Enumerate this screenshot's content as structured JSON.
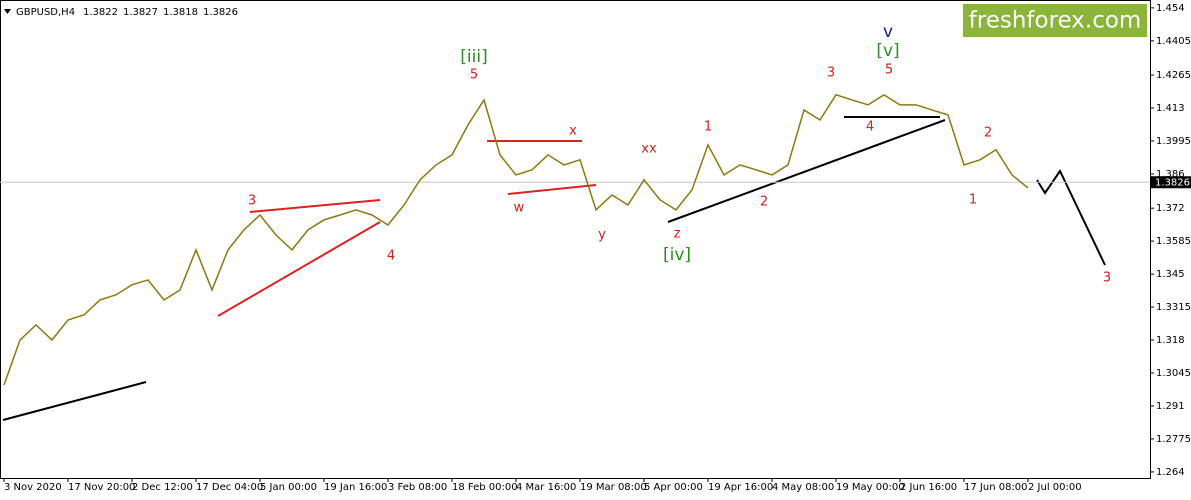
{
  "chart_data": {
    "type": "line",
    "symbol": "GBPUSD,H4",
    "ohlc": [
      1.3822,
      1.3827,
      1.3818,
      1.3826
    ],
    "last_price": 1.3826,
    "watermark": "freshforex.com",
    "categories": [
      "3 Nov 2020",
      null,
      null,
      null,
      "17 Nov 20:00",
      null,
      null,
      null,
      "2 Dec 12:00",
      null,
      null,
      null,
      "17 Dec 04:00",
      null,
      null,
      null,
      "5 Jan 00:00",
      null,
      null,
      null,
      "19 Jan 16:00",
      null,
      null,
      null,
      "3 Feb 08:00",
      null,
      null,
      null,
      "18 Feb 00:00",
      null,
      null,
      null,
      "4 Mar 16:00",
      null,
      null,
      null,
      "19 Mar 08:00",
      null,
      null,
      null,
      "5 Apr 00:00",
      null,
      null,
      null,
      "19 Apr 16:00",
      null,
      null,
      null,
      "4 May 08:00",
      null,
      null,
      null,
      "19 May 00:00",
      null,
      null,
      null,
      "2 Jun 16:00",
      null,
      null,
      null,
      "17 Jun 08:00",
      null,
      null,
      null,
      "2 Jul 00:00"
    ],
    "series": [
      {
        "name": "GBPUSD",
        "color": "#8a7a10",
        "values": [
          1.2996,
          1.318,
          1.3242,
          1.318,
          1.3262,
          1.3283,
          1.3344,
          1.3365,
          1.3406,
          1.3426,
          1.3344,
          1.3385,
          1.3549,
          1.3385,
          1.3549,
          1.3631,
          1.3692,
          1.361,
          1.3549,
          1.3631,
          1.3672,
          1.3692,
          1.3713,
          1.3692,
          1.3651,
          1.3733,
          1.3836,
          1.3897,
          1.3938,
          1.4061,
          1.4163,
          1.3938,
          1.3856,
          1.3877,
          1.3938,
          1.3897,
          1.3918,
          1.3713,
          1.3774,
          1.3733,
          1.3836,
          1.3754,
          1.3713,
          1.3795,
          1.3979,
          1.3856,
          1.3897,
          1.3877,
          1.3856,
          1.3897,
          1.4122,
          1.4081,
          1.4184,
          1.4163,
          1.4143,
          1.4184,
          1.4143,
          1.4143,
          1.4122,
          1.4102,
          1.3897,
          1.3918,
          1.3959,
          1.3856,
          1.3803
        ]
      }
    ],
    "ylim": [
      1.2615,
      1.456
    ],
    "yticks": [
      1.454,
      1.4405,
      1.4265,
      1.413,
      1.3995,
      1.386,
      1.372,
      1.3585,
      1.345,
      1.3315,
      1.318,
      1.3045,
      1.291,
      1.2775,
      1.264
    ],
    "annotations": [
      {
        "text": "[iii]",
        "color": "#2e8b22"
      },
      {
        "text": "5",
        "color": "#d02020"
      },
      {
        "text": "3",
        "color": "#d02020"
      },
      {
        "text": "4",
        "color": "#d02020"
      },
      {
        "text": "x",
        "color": "#d02020"
      },
      {
        "text": "w",
        "color": "#d02020"
      },
      {
        "text": "xx",
        "color": "#d02020"
      },
      {
        "text": "y",
        "color": "#d02020"
      },
      {
        "text": "z",
        "color": "#d02020"
      },
      {
        "text": "[iv]",
        "color": "#2e8b22"
      },
      {
        "text": "1",
        "color": "#d02020"
      },
      {
        "text": "2",
        "color": "#d02020"
      },
      {
        "text": "3",
        "color": "#d02020"
      },
      {
        "text": "4",
        "color": "#d02020"
      },
      {
        "text": "5",
        "color": "#d02020"
      },
      {
        "text": "v",
        "color": "#1a237e"
      },
      {
        "text": "[v]",
        "color": "#2e8b22"
      },
      {
        "text": "2",
        "color": "#d02020"
      },
      {
        "text": "1",
        "color": "#d02020"
      },
      {
        "text": "3",
        "color": "#d02020"
      }
    ]
  }
}
